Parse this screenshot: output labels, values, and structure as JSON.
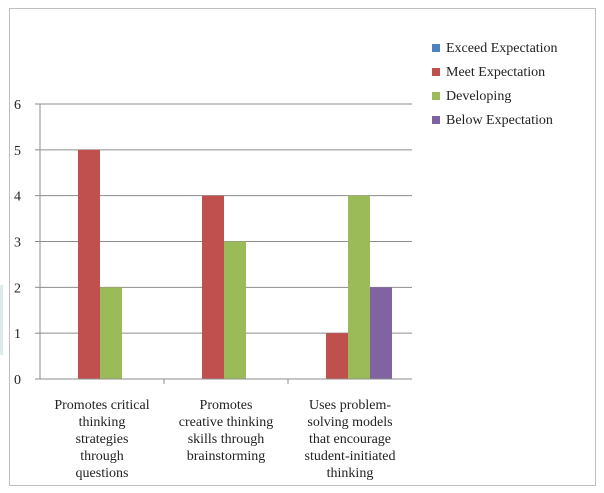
{
  "chart_data": {
    "type": "bar",
    "categories": [
      [
        "Promotes critical",
        "thinking",
        "strategies",
        "through",
        "questions"
      ],
      [
        "Promotes",
        "creative thinking",
        "skills through",
        "brainstorming"
      ],
      [
        "Uses problem-",
        "solving models",
        "that encourage",
        "student-initiated",
        "thinking"
      ]
    ],
    "series": [
      {
        "name": "Exceed Expectation",
        "color": "#4f81bd",
        "values": [
          0,
          0,
          0
        ]
      },
      {
        "name": "Meet Expectation",
        "color": "#c0504d",
        "values": [
          5,
          4,
          1
        ]
      },
      {
        "name": "Developing",
        "color": "#9bbb59",
        "values": [
          2,
          3,
          4
        ]
      },
      {
        "name": "Below Expectation",
        "color": "#8064a2",
        "values": [
          0,
          0,
          2
        ]
      }
    ],
    "ylim": [
      0,
      6
    ],
    "yticks": [
      0,
      1,
      2,
      3,
      4,
      5,
      6
    ],
    "grid": true,
    "legend": "right"
  }
}
